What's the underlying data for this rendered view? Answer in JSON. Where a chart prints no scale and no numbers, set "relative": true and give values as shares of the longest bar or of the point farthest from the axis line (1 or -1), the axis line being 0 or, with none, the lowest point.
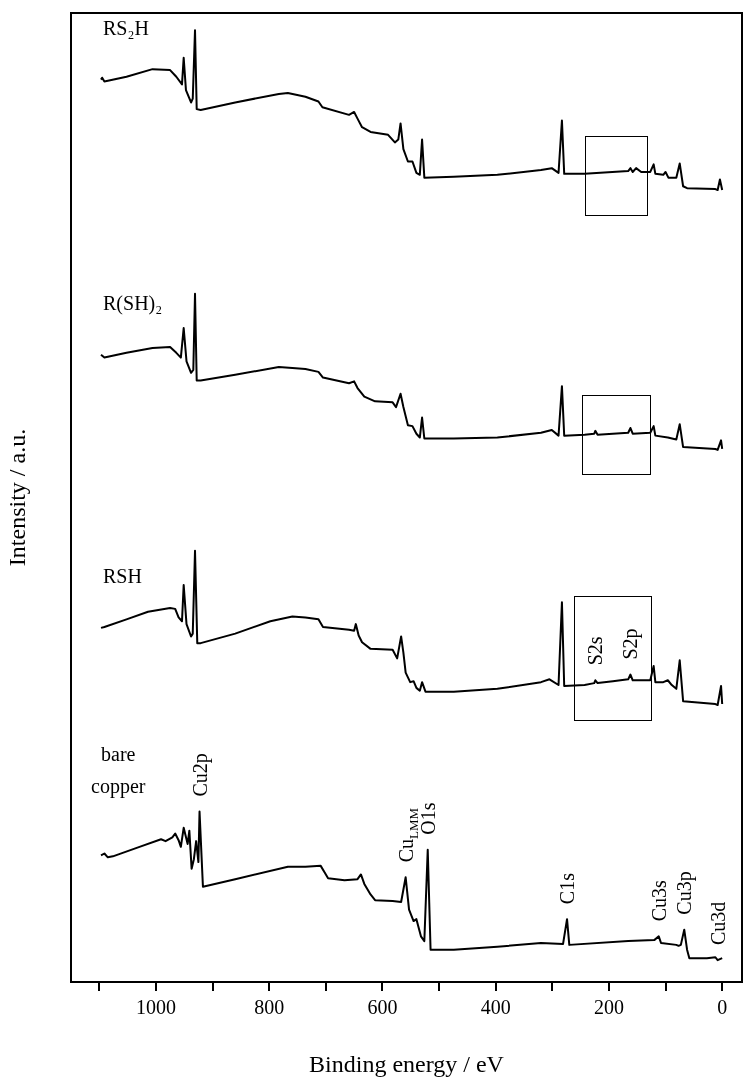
{
  "chart_data": {
    "type": "line",
    "relative": true,
    "xlabel": "Binding energy / eV",
    "ylabel": "Intensity / a.u.",
    "xlim": [
      1150,
      -35
    ],
    "xticks": [
      {
        "value": 1100,
        "label": null
      },
      1000,
      {
        "value": 900,
        "label": null
      },
      800,
      {
        "value": 700,
        "label": null
      },
      600,
      {
        "value": 500,
        "label": null
      },
      400,
      {
        "value": 300,
        "label": null
      },
      200,
      {
        "value": 100,
        "label": null
      },
      0
    ],
    "marker": "none",
    "series": [
      {
        "name": "RS₂H",
        "color": "#000000",
        "x": [
          1097,
          1095,
          1091,
          1052,
          1006,
          975,
          964,
          954,
          951,
          947,
          938,
          935,
          931,
          928,
          921,
          860,
          783,
          767,
          736,
          713,
          706,
          659,
          650,
          644,
          636,
          621,
          590,
          578,
          572,
          568,
          563,
          555,
          547,
          540,
          534,
          530,
          526,
          474,
          397,
          320,
          301,
          289,
          283,
          279,
          243,
          166,
          162,
          158,
          152,
          143,
          127,
          121,
          118,
          104,
          100,
          95,
          81,
          75,
          69,
          62,
          12,
          8,
          4,
          0
        ],
        "values": [
          0.948,
          0.95,
          0.946,
          0.951,
          0.959,
          0.958,
          0.951,
          0.943,
          0.971,
          0.937,
          0.924,
          0.928,
          1.0,
          0.917,
          0.916,
          0.924,
          0.933,
          0.934,
          0.93,
          0.925,
          0.919,
          0.911,
          0.914,
          0.907,
          0.898,
          0.893,
          0.89,
          0.882,
          0.885,
          0.902,
          0.875,
          0.862,
          0.862,
          0.85,
          0.848,
          0.885,
          0.845,
          0.846,
          0.848,
          0.853,
          0.855,
          0.85,
          0.905,
          0.849,
          0.849,
          0.852,
          0.855,
          0.851,
          0.855,
          0.851,
          0.851,
          0.859,
          0.849,
          0.848,
          0.851,
          0.845,
          0.845,
          0.86,
          0.836,
          0.834,
          0.833,
          0.832,
          0.843,
          0.832
        ]
      },
      {
        "name": "R(SH)₂",
        "color": "#000000",
        "x": [
          1097,
          1091,
          1052,
          1006,
          975,
          964,
          956,
          951,
          946,
          938,
          934,
          931,
          928,
          921,
          860,
          783,
          759,
          736,
          713,
          705,
          659,
          650,
          644,
          632,
          613,
          582,
          576,
          568,
          563,
          555,
          547,
          540,
          534,
          530,
          526,
          474,
          397,
          320,
          301,
          289,
          283,
          279,
          243,
          226,
          224,
          220,
          166,
          162,
          158,
          127,
          121,
          118,
          96,
          81,
          75,
          69,
          12,
          8,
          2,
          0
        ],
        "values": [
          0.659,
          0.656,
          0.661,
          0.666,
          0.667,
          0.661,
          0.656,
          0.687,
          0.652,
          0.64,
          0.643,
          0.723,
          0.632,
          0.632,
          0.638,
          0.646,
          0.645,
          0.644,
          0.641,
          0.635,
          0.629,
          0.631,
          0.624,
          0.615,
          0.61,
          0.609,
          0.604,
          0.618,
          0.604,
          0.585,
          0.584,
          0.576,
          0.572,
          0.593,
          0.571,
          0.571,
          0.572,
          0.577,
          0.58,
          0.574,
          0.626,
          0.574,
          0.575,
          0.576,
          0.579,
          0.575,
          0.577,
          0.582,
          0.576,
          0.577,
          0.584,
          0.574,
          0.572,
          0.57,
          0.586,
          0.562,
          0.56,
          0.559,
          0.569,
          0.56
        ]
      },
      {
        "name": "RSH",
        "color": "#000000",
        "x": [
          1097,
          1091,
          1052,
          1014,
          975,
          966,
          960,
          954,
          951,
          946,
          938,
          935,
          931,
          927,
          921,
          860,
          798,
          759,
          736,
          713,
          705,
          659,
          650,
          647,
          642,
          636,
          621,
          582,
          574,
          567,
          563,
          559,
          551,
          545,
          540,
          534,
          530,
          524,
          474,
          397,
          320,
          305,
          289,
          283,
          279,
          243,
          226,
          224,
          220,
          193,
          166,
          162,
          158,
          127,
          121,
          118,
          104,
          96,
          89,
          81,
          75,
          69,
          12,
          8,
          2,
          0
        ],
        "values": [
          0.372,
          0.373,
          0.381,
          0.389,
          0.393,
          0.392,
          0.383,
          0.379,
          0.417,
          0.376,
          0.363,
          0.366,
          0.453,
          0.356,
          0.356,
          0.366,
          0.379,
          0.384,
          0.383,
          0.381,
          0.373,
          0.37,
          0.369,
          0.376,
          0.364,
          0.357,
          0.35,
          0.349,
          0.34,
          0.363,
          0.346,
          0.325,
          0.315,
          0.316,
          0.309,
          0.306,
          0.315,
          0.305,
          0.305,
          0.308,
          0.315,
          0.318,
          0.312,
          0.399,
          0.311,
          0.312,
          0.314,
          0.317,
          0.314,
          0.316,
          0.318,
          0.323,
          0.317,
          0.317,
          0.332,
          0.315,
          0.315,
          0.317,
          0.312,
          0.308,
          0.338,
          0.295,
          0.292,
          0.291,
          0.311,
          0.292
        ]
      },
      {
        "name": "bare copper",
        "color": "#000000",
        "x": [
          1097,
          1091,
          1085,
          1076,
          1029,
          991,
          983,
          971,
          966,
          960,
          956,
          951,
          944,
          941,
          937,
          933,
          929,
          925,
          923,
          917,
          860,
          767,
          736,
          709,
          702,
          696,
          667,
          644,
          638,
          632,
          621,
          613,
          582,
          567,
          559,
          553,
          545,
          540,
          532,
          526,
          520,
          515,
          474,
          397,
          320,
          281,
          274,
          270,
          166,
          120,
          112,
          108,
          81,
          77,
          73,
          67,
          62,
          58,
          27,
          12,
          8,
          0
        ],
        "values": [
          0.133,
          0.135,
          0.131,
          0.132,
          0.142,
          0.15,
          0.148,
          0.152,
          0.156,
          0.149,
          0.142,
          0.162,
          0.145,
          0.159,
          0.119,
          0.129,
          0.148,
          0.126,
          0.179,
          0.1,
          0.108,
          0.121,
          0.121,
          0.122,
          0.115,
          0.109,
          0.107,
          0.108,
          0.113,
          0.103,
          0.092,
          0.086,
          0.085,
          0.084,
          0.11,
          0.076,
          0.064,
          0.066,
          0.048,
          0.043,
          0.139,
          0.034,
          0.034,
          0.037,
          0.041,
          0.04,
          0.066,
          0.039,
          0.043,
          0.044,
          0.048,
          0.041,
          0.039,
          0.038,
          0.039,
          0.055,
          0.034,
          0.025,
          0.025,
          0.026,
          0.023,
          0.025
        ]
      }
    ],
    "annotations": [
      {
        "text": "Cu2p",
        "x": 923,
        "y": 0.179
      },
      {
        "text": "Cu$_{LMM}$",
        "x": 559,
        "y": 0.11
      },
      {
        "text": "O1s",
        "x": 520,
        "y": 0.139
      },
      {
        "text": "C1s",
        "x": 274,
        "y": 0.066
      },
      {
        "text": "Cu3s",
        "x": 112,
        "y": 0.048
      },
      {
        "text": "Cu3p",
        "x": 67,
        "y": 0.055
      },
      {
        "text": "Cu3d",
        "x": 8,
        "y": 0.023
      },
      {
        "text": "S2s",
        "x": 224,
        "y": 0.317
      },
      {
        "text": "S2p",
        "x": 162,
        "y": 0.323
      }
    ]
  }
}
